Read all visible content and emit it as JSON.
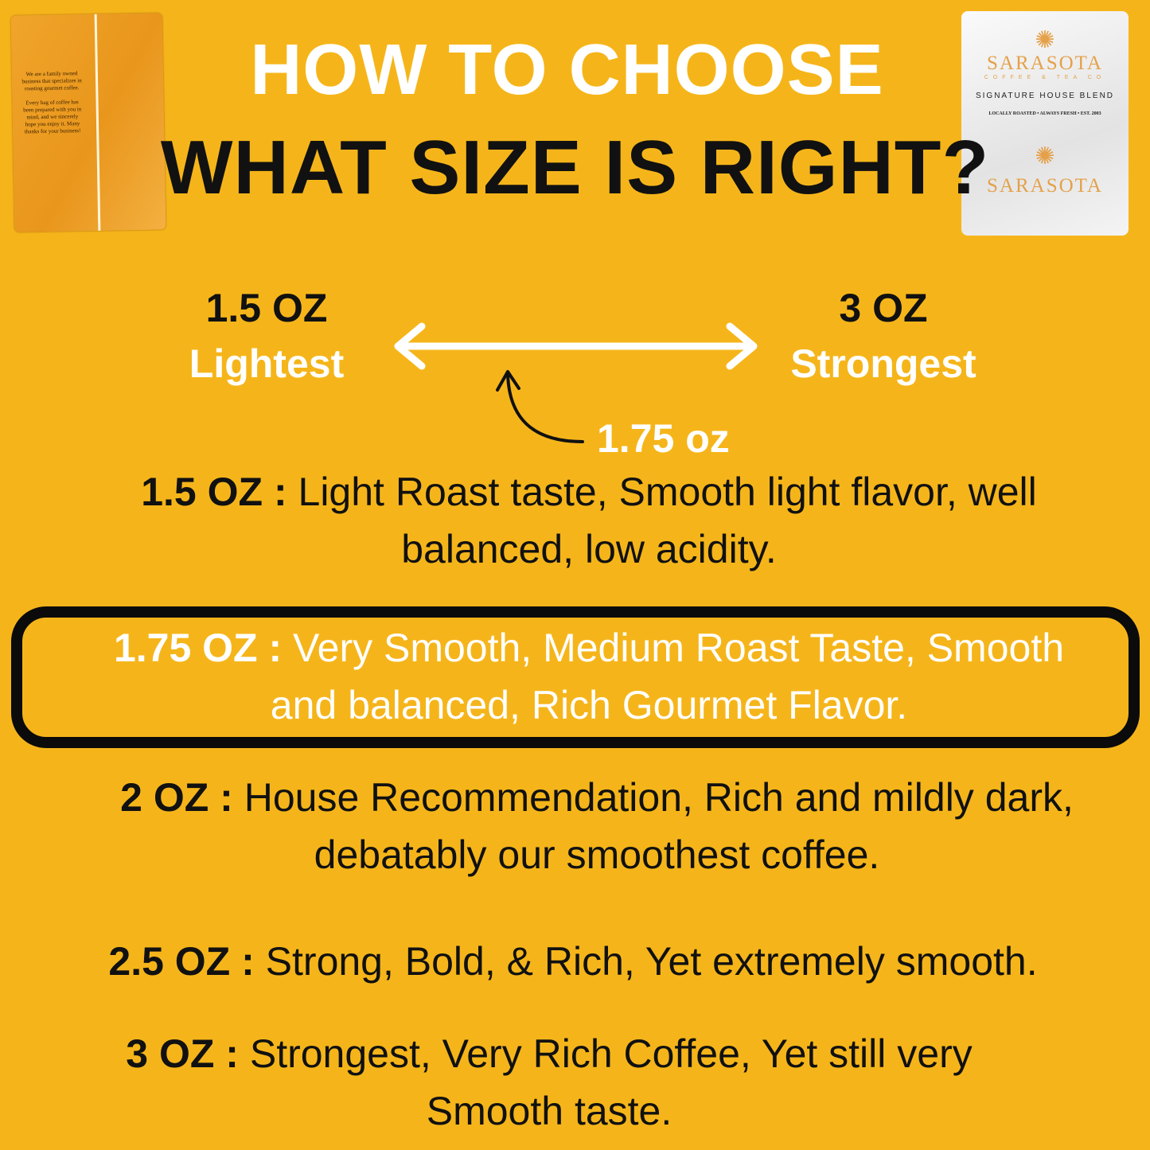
{
  "header": {
    "line1": "HOW TO CHOOSE",
    "line2": "WHAT SIZE IS RIGHT?"
  },
  "products": {
    "left_packet": {
      "text1": "We are a family owned business that specializes in roasting gourmet coffee.",
      "text2": "Every bag of coffee has been prepared with you in mind, and we sincerely hope you enjoy it. Many thanks for your business!"
    },
    "right_packet": {
      "brand": "SARASOTA",
      "sub": "COFFEE & TEA CO",
      "blend": "SIGNATURE HOUSE BLEND",
      "tagline": "LOCALLY ROASTED • ALWAYS FRESH • EST. 2003"
    }
  },
  "scale": {
    "left": {
      "size": "1.5 OZ",
      "label": "Lightest"
    },
    "right": {
      "size": "3 OZ",
      "label": "Strongest"
    },
    "marker": "1.75 oz",
    "colors": {
      "arrow": "#ffffff"
    }
  },
  "sizes": [
    {
      "size": "1.5 OZ :",
      "line1": "Light Roast taste, Smooth light flavor, well",
      "line2": "balanced, low acidity."
    },
    {
      "size": "1.75 OZ :",
      "line1": "Very Smooth, Medium Roast Taste, Smooth",
      "line2": "and balanced, Rich Gourmet Flavor.",
      "highlighted": true
    },
    {
      "size": "2 OZ :",
      "line1": "House Recommendation, Rich and mildly dark,",
      "line2": "debatably our smoothest coffee."
    },
    {
      "size": "2.5 OZ :",
      "line1": "Strong, Bold, & Rich, Yet extremely smooth."
    },
    {
      "size": "3 OZ :",
      "line1": "Strongest, Very Rich Coffee, Yet still very",
      "line2": "Smooth taste."
    }
  ],
  "colors": {
    "background": "#F5B51A",
    "title_white": "#ffffff",
    "text": "#111111"
  }
}
